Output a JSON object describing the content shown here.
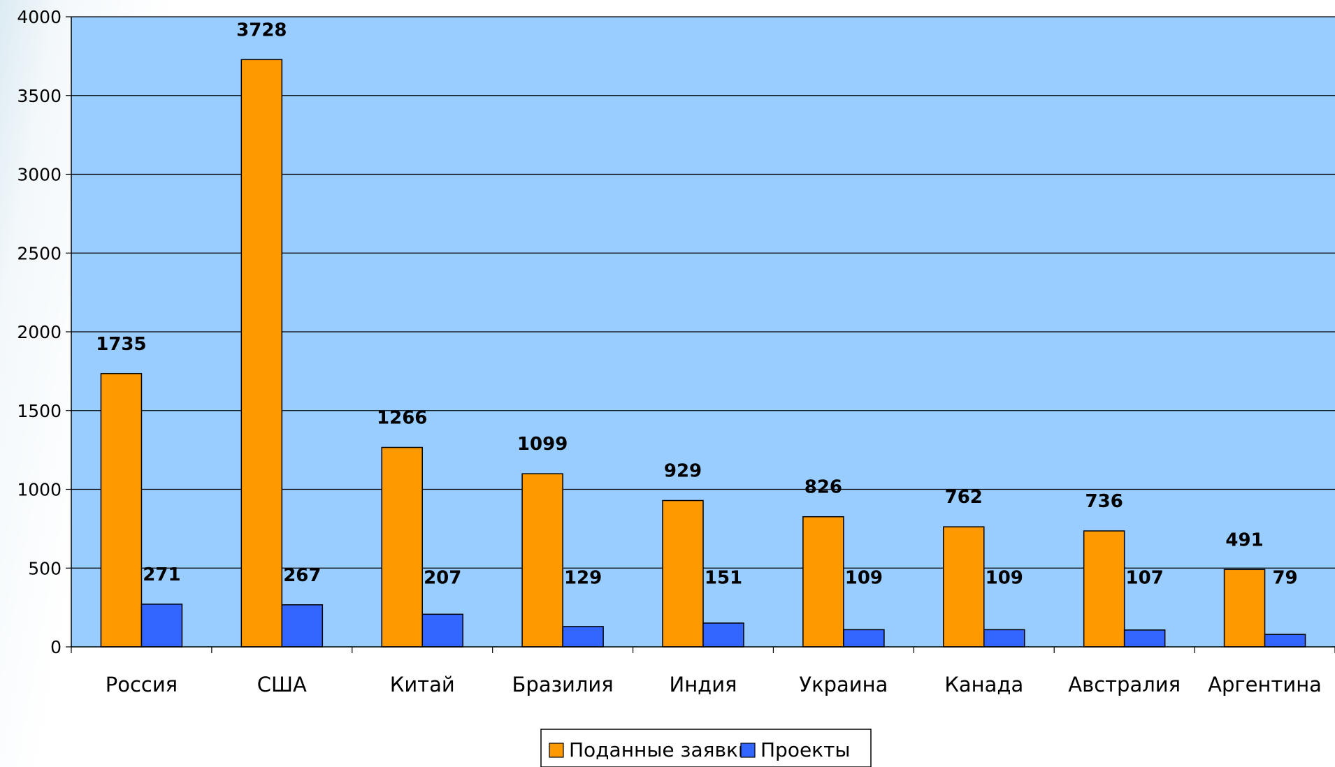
{
  "chart_data": {
    "type": "bar",
    "categories": [
      "Россия",
      "США",
      "Китай",
      "Бразилия",
      "Индия",
      "Украина",
      "Канада",
      "Австралия",
      "Аргентина"
    ],
    "series": [
      {
        "name": "Поданные заявки",
        "values": [
          1735,
          3728,
          1266,
          1099,
          929,
          826,
          762,
          736,
          491
        ],
        "color": "#FF9900"
      },
      {
        "name": "Проекты",
        "values": [
          271,
          267,
          207,
          129,
          151,
          109,
          109,
          107,
          79
        ],
        "color": "#3366FF"
      }
    ],
    "ylim": [
      0,
      4000
    ],
    "yticks": [
      0,
      500,
      1000,
      1500,
      2000,
      2500,
      3000,
      3500,
      4000
    ],
    "title": "",
    "xlabel": "",
    "ylabel": "",
    "grid": true,
    "legend_position": "bottom",
    "plot_background": "#99CCFF"
  }
}
